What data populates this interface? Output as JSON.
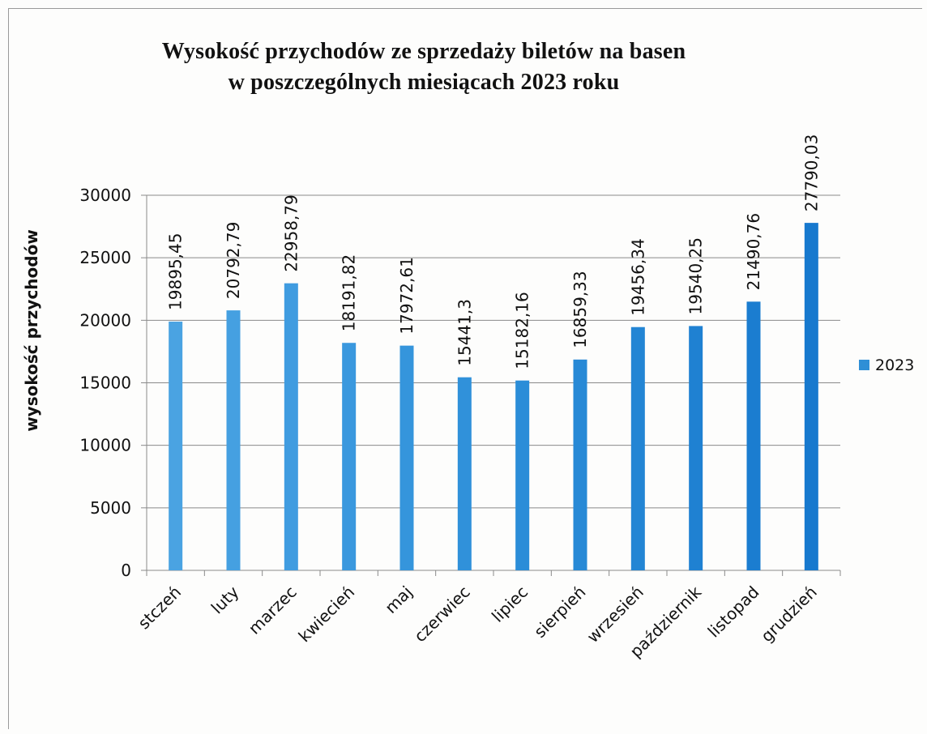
{
  "chart_data": {
    "type": "bar",
    "title_lines": [
      "Wysokość przychodów ze sprzedaży biletów na basen",
      "w poszczególnych miesiącach 2023 roku"
    ],
    "ylabel": "wysokość przychodów",
    "xlabel": "",
    "ylim": [
      0,
      30000
    ],
    "yticks": [
      {
        "value": 0,
        "label": "0"
      },
      {
        "value": 5000,
        "label": "5000"
      },
      {
        "value": 10000,
        "label": "10000"
      },
      {
        "value": 15000,
        "label": "15000"
      },
      {
        "value": 20000,
        "label": "20000"
      },
      {
        "value": 25000,
        "label": "25000"
      },
      {
        "value": 30000,
        "label": "30000"
      }
    ],
    "grid": true,
    "legend_position": "right",
    "categories": [
      "stczeń",
      "luty",
      "marzec",
      "kwiecień",
      "maj",
      "czerwiec",
      "lipiec",
      "sierpień",
      "wrzesień",
      "październik",
      "listopad",
      "grudzień"
    ],
    "series": [
      {
        "name": "2023",
        "color": "#2f8fd6",
        "values": [
          19895.45,
          20792.79,
          22958.79,
          18191.82,
          17972.61,
          15441.3,
          15182.16,
          16859.33,
          19456.34,
          19540.25,
          21490.76,
          27790.03
        ],
        "labels": [
          "19895,45",
          "20792,79",
          "22958,79",
          "18191,82",
          "17972,61",
          "15441,3",
          "15182,16",
          "16859,33",
          "19456,34",
          "19540,25",
          "21490,76",
          "27790,03"
        ]
      }
    ]
  }
}
